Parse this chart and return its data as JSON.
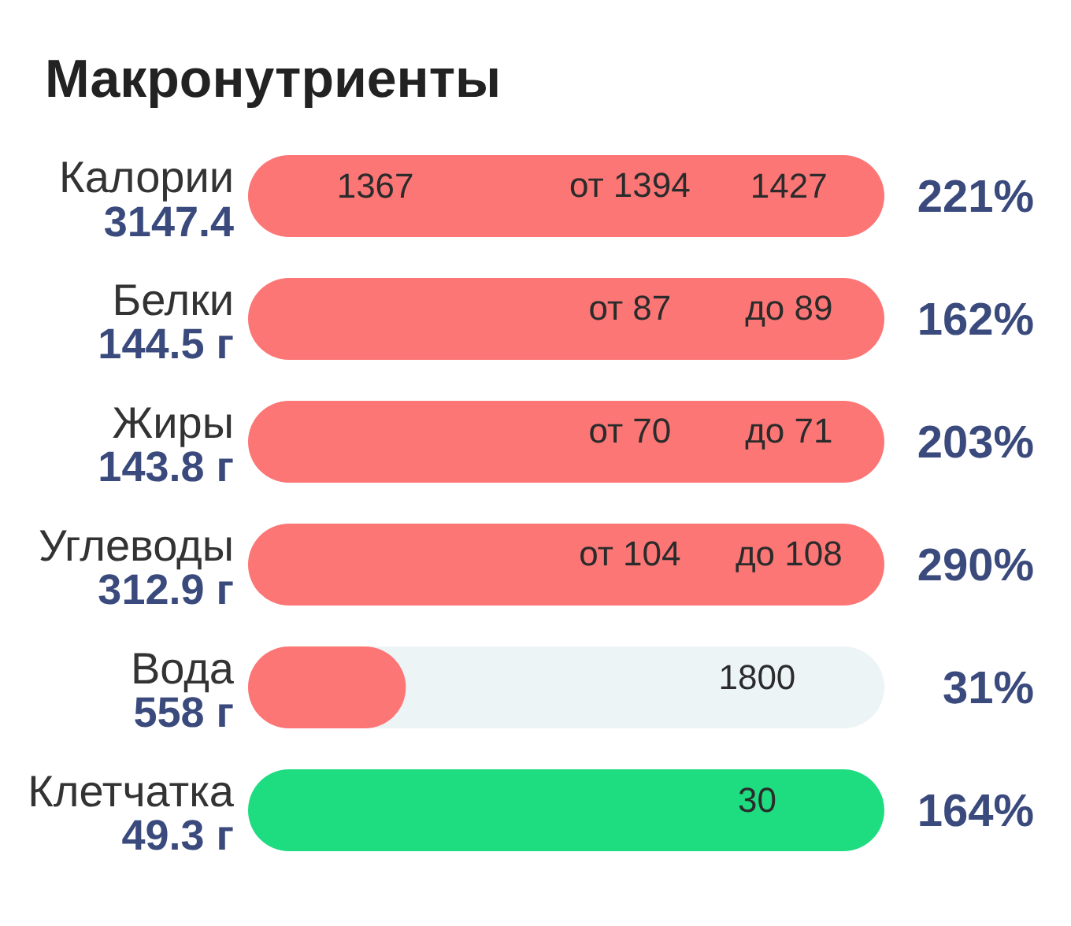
{
  "chart_data": {
    "type": "other",
    "title": "Макронутриенты",
    "categories": [
      "Калории\n3147.4",
      "Белки\n144.5 г",
      "Жиры\n143.8 г",
      "Углеводы\n312.9 г",
      "Вода\n558 г",
      "Клетчатка\n49.3 г"
    ],
    "values": [
      221,
      162,
      203,
      290,
      31,
      164
    ],
    "value_labels": [
      "221%",
      "162%",
      "203%",
      "290%",
      "31%",
      "164%"
    ],
    "colors": [
      "#fd7676",
      "#fd7676",
      "#fd7676",
      "#fd7676",
      "#fd7676",
      "#1edc80"
    ],
    "annotations": [
      {
        "text": "1367",
        "y": "Калории\n3147.4"
      },
      {
        "text": "от 1394",
        "y": "Калории\n3147.4"
      },
      {
        "text": "1427",
        "y": "Калории\n3147.4"
      },
      {
        "text": "от 87",
        "y": "Белки\n144.5 г"
      },
      {
        "text": "до 89",
        "y": "Белки\n144.5 г"
      },
      {
        "text": "от 70",
        "y": "Жиры\n143.8 г"
      },
      {
        "text": "до 71",
        "y": "Жиры\n143.8 г"
      },
      {
        "text": "от 104",
        "y": "Углеводы\n312.9 г"
      },
      {
        "text": "до 108",
        "y": "Углеводы\n312.9 г"
      },
      {
        "text": "1800",
        "y": "Вода\n558 г"
      },
      {
        "text": "30",
        "y": "Клетчатка\n49.3 г"
      }
    ]
  }
}
